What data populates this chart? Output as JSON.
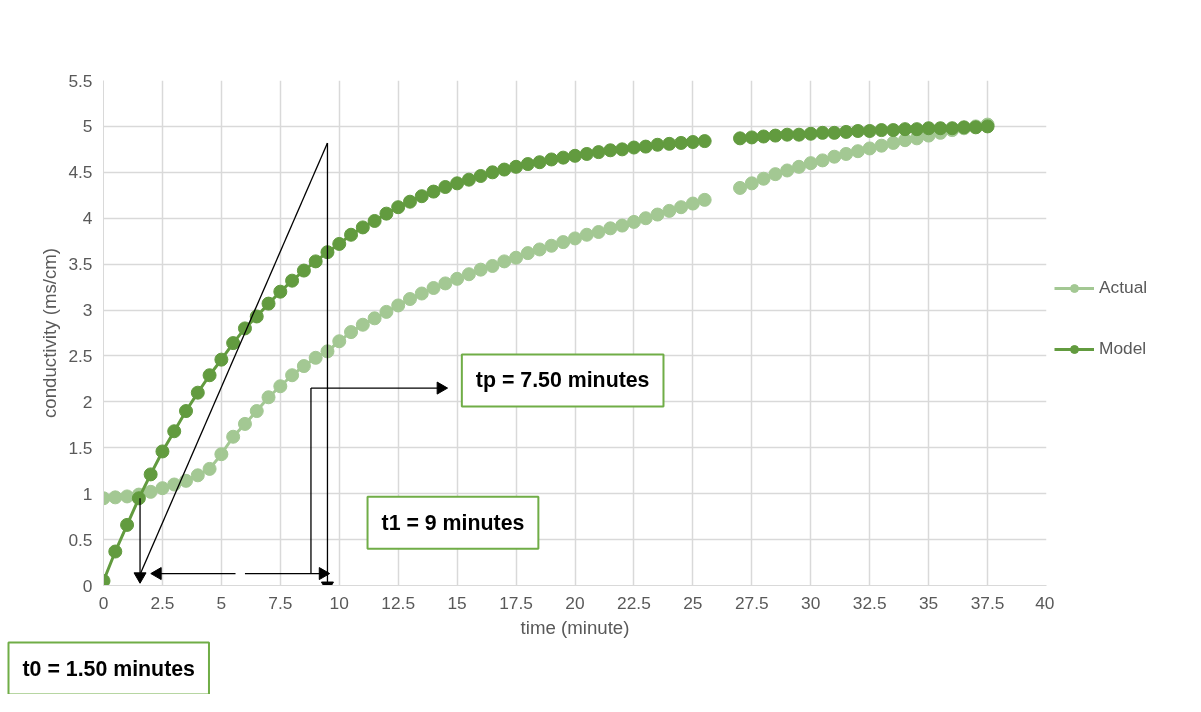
{
  "chart_data": {
    "type": "line",
    "xlabel": "time (minute)",
    "ylabel": "conductivity (ms/cm)",
    "xlim": [
      0,
      40
    ],
    "xticks": [
      0,
      2.5,
      5,
      7.5,
      10,
      12.5,
      15,
      17.5,
      20,
      22.5,
      25,
      27.5,
      30,
      32.5,
      35,
      37.5,
      40
    ],
    "ylim": [
      0,
      5.5
    ],
    "yticks": [
      0,
      0.5,
      1,
      1.5,
      2,
      2.5,
      3,
      3.5,
      4,
      4.5,
      5,
      5.5
    ],
    "grid": true,
    "legend": "right",
    "marker": "circle",
    "x": [
      0,
      0.5,
      1,
      1.5,
      2,
      2.5,
      3,
      3.5,
      4,
      4.5,
      5,
      5.5,
      6,
      6.5,
      7,
      7.5,
      8,
      8.5,
      9,
      9.5,
      10,
      10.5,
      11,
      11.5,
      12,
      12.5,
      13,
      13.5,
      14,
      14.5,
      15,
      15.5,
      16,
      16.5,
      17,
      17.5,
      18,
      18.5,
      19,
      19.5,
      20,
      20.5,
      21,
      21.5,
      22,
      22.5,
      23,
      23.5,
      24,
      24.5,
      25,
      25.5,
      26,
      26.5,
      27,
      27.5,
      28,
      28.5,
      29,
      29.5,
      30,
      30.5,
      31,
      31.5,
      32,
      32.5,
      33,
      33.5,
      34,
      34.5,
      35,
      35.5,
      36,
      36.5,
      37,
      37.5
    ],
    "series": [
      {
        "name": "Actual",
        "color": "#a3c893",
        "values": [
          0.95,
          0.96,
          0.97,
          0.99,
          1.02,
          1.06,
          1.1,
          1.14,
          1.2,
          1.27,
          1.43,
          1.62,
          1.76,
          1.9,
          2.05,
          2.17,
          2.29,
          2.39,
          2.48,
          2.55,
          2.66,
          2.76,
          2.84,
          2.91,
          2.98,
          3.05,
          3.12,
          3.18,
          3.24,
          3.29,
          3.34,
          3.39,
          3.44,
          3.48,
          3.53,
          3.57,
          3.62,
          3.66,
          3.7,
          3.74,
          3.78,
          3.82,
          3.85,
          3.89,
          3.92,
          3.96,
          4.0,
          4.04,
          4.08,
          4.12,
          4.16,
          4.2,
          null,
          null,
          4.33,
          4.38,
          4.43,
          4.48,
          4.52,
          4.56,
          4.6,
          4.63,
          4.67,
          4.7,
          4.73,
          4.76,
          4.79,
          4.82,
          4.85,
          4.87,
          4.9,
          4.93,
          4.96,
          4.98,
          5.0,
          5.02
        ]
      },
      {
        "name": "Model",
        "color": "#629b3f",
        "values": [
          0.05,
          0.37,
          0.66,
          0.95,
          1.21,
          1.46,
          1.68,
          1.9,
          2.1,
          2.29,
          2.46,
          2.64,
          2.8,
          2.93,
          3.07,
          3.2,
          3.32,
          3.43,
          3.53,
          3.63,
          3.72,
          3.82,
          3.9,
          3.97,
          4.05,
          4.12,
          4.18,
          4.24,
          4.29,
          4.34,
          4.38,
          4.42,
          4.46,
          4.5,
          4.53,
          4.56,
          4.59,
          4.61,
          4.64,
          4.66,
          4.68,
          4.7,
          4.72,
          4.74,
          4.75,
          4.77,
          4.78,
          4.8,
          4.81,
          4.82,
          4.83,
          4.84,
          null,
          null,
          4.87,
          4.88,
          4.89,
          4.9,
          4.91,
          4.91,
          4.92,
          4.93,
          4.93,
          4.94,
          4.95,
          4.95,
          4.96,
          4.96,
          4.97,
          4.97,
          4.98,
          4.98,
          4.98,
          4.99,
          4.99,
          5.0
        ]
      },
      {
        "type": "line",
        "color": "#000000",
        "marker": "none",
        "x": [
          1.55,
          9.5
        ],
        "values": [
          0.12,
          4.82
        ]
      },
      {
        "type": "line",
        "color": "#000000",
        "marker": "triangle",
        "x": [
          9.5,
          9.5
        ],
        "values": [
          4.82,
          0.0
        ]
      },
      {
        "type": "line",
        "color": "#000000",
        "marker": "triangle",
        "x": [
          1.55,
          1.55
        ],
        "values": [
          0.95,
          0.1
        ]
      },
      {
        "type": "line",
        "color": "#000000",
        "marker": "triangle",
        "x": [
          5.6,
          2.3
        ],
        "values": [
          0.13,
          0.13
        ]
      },
      {
        "type": "line",
        "color": "#000000",
        "marker": "triangle",
        "x": [
          6.0,
          9.3
        ],
        "values": [
          0.13,
          0.13
        ]
      },
      {
        "type": "line",
        "color": "#000000",
        "marker": "none",
        "x": [
          8.8,
          8.8
        ],
        "values": [
          0.13,
          2.15
        ]
      },
      {
        "type": "line",
        "color": "#000000",
        "marker": "triangle",
        "x": [
          8.8,
          14.3
        ],
        "values": [
          2.15,
          2.15
        ]
      }
    ],
    "annotations": [
      "tp = 7.50 minutes",
      "t1 = 9 minutes",
      "t0 = 1.50 minutes"
    ]
  }
}
